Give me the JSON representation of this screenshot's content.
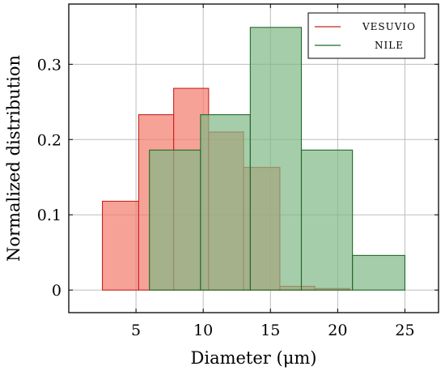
{
  "chart_data": {
    "type": "bar",
    "subtype": "overlaid-histogram",
    "title": "",
    "xlabel": "Diameter (μm)",
    "ylabel": "Normalized distribution",
    "xlim": [
      0,
      27.5
    ],
    "ylim": [
      -0.03,
      0.38
    ],
    "xticks": [
      5,
      10,
      15,
      20,
      25
    ],
    "yticks": [
      0,
      0.1,
      0.2,
      0.3
    ],
    "grid": true,
    "legend_position": "top-right",
    "series": [
      {
        "name": "VESUVIO",
        "stroke": "#cc2222",
        "fill": "#f47a6b",
        "bins": [
          {
            "x0": 2.5,
            "x1": 5.2,
            "value": 0.118
          },
          {
            "x0": 5.2,
            "x1": 7.8,
            "value": 0.233
          },
          {
            "x0": 7.8,
            "x1": 10.4,
            "value": 0.268
          },
          {
            "x0": 10.4,
            "x1": 13.0,
            "value": 0.21
          },
          {
            "x0": 13.0,
            "x1": 15.7,
            "value": 0.163
          },
          {
            "x0": 15.7,
            "x1": 18.3,
            "value": 0.005
          },
          {
            "x0": 18.3,
            "x1": 20.9,
            "value": 0.002
          }
        ]
      },
      {
        "name": "NILE",
        "stroke": "#1f6b2a",
        "fill": "#80b884",
        "bins": [
          {
            "x0": 6.0,
            "x1": 9.8,
            "value": 0.186
          },
          {
            "x0": 9.8,
            "x1": 13.5,
            "value": 0.233
          },
          {
            "x0": 13.5,
            "x1": 17.3,
            "value": 0.349
          },
          {
            "x0": 17.3,
            "x1": 21.1,
            "value": 0.186
          },
          {
            "x0": 21.1,
            "x1": 25.0,
            "value": 0.046
          }
        ]
      }
    ]
  }
}
